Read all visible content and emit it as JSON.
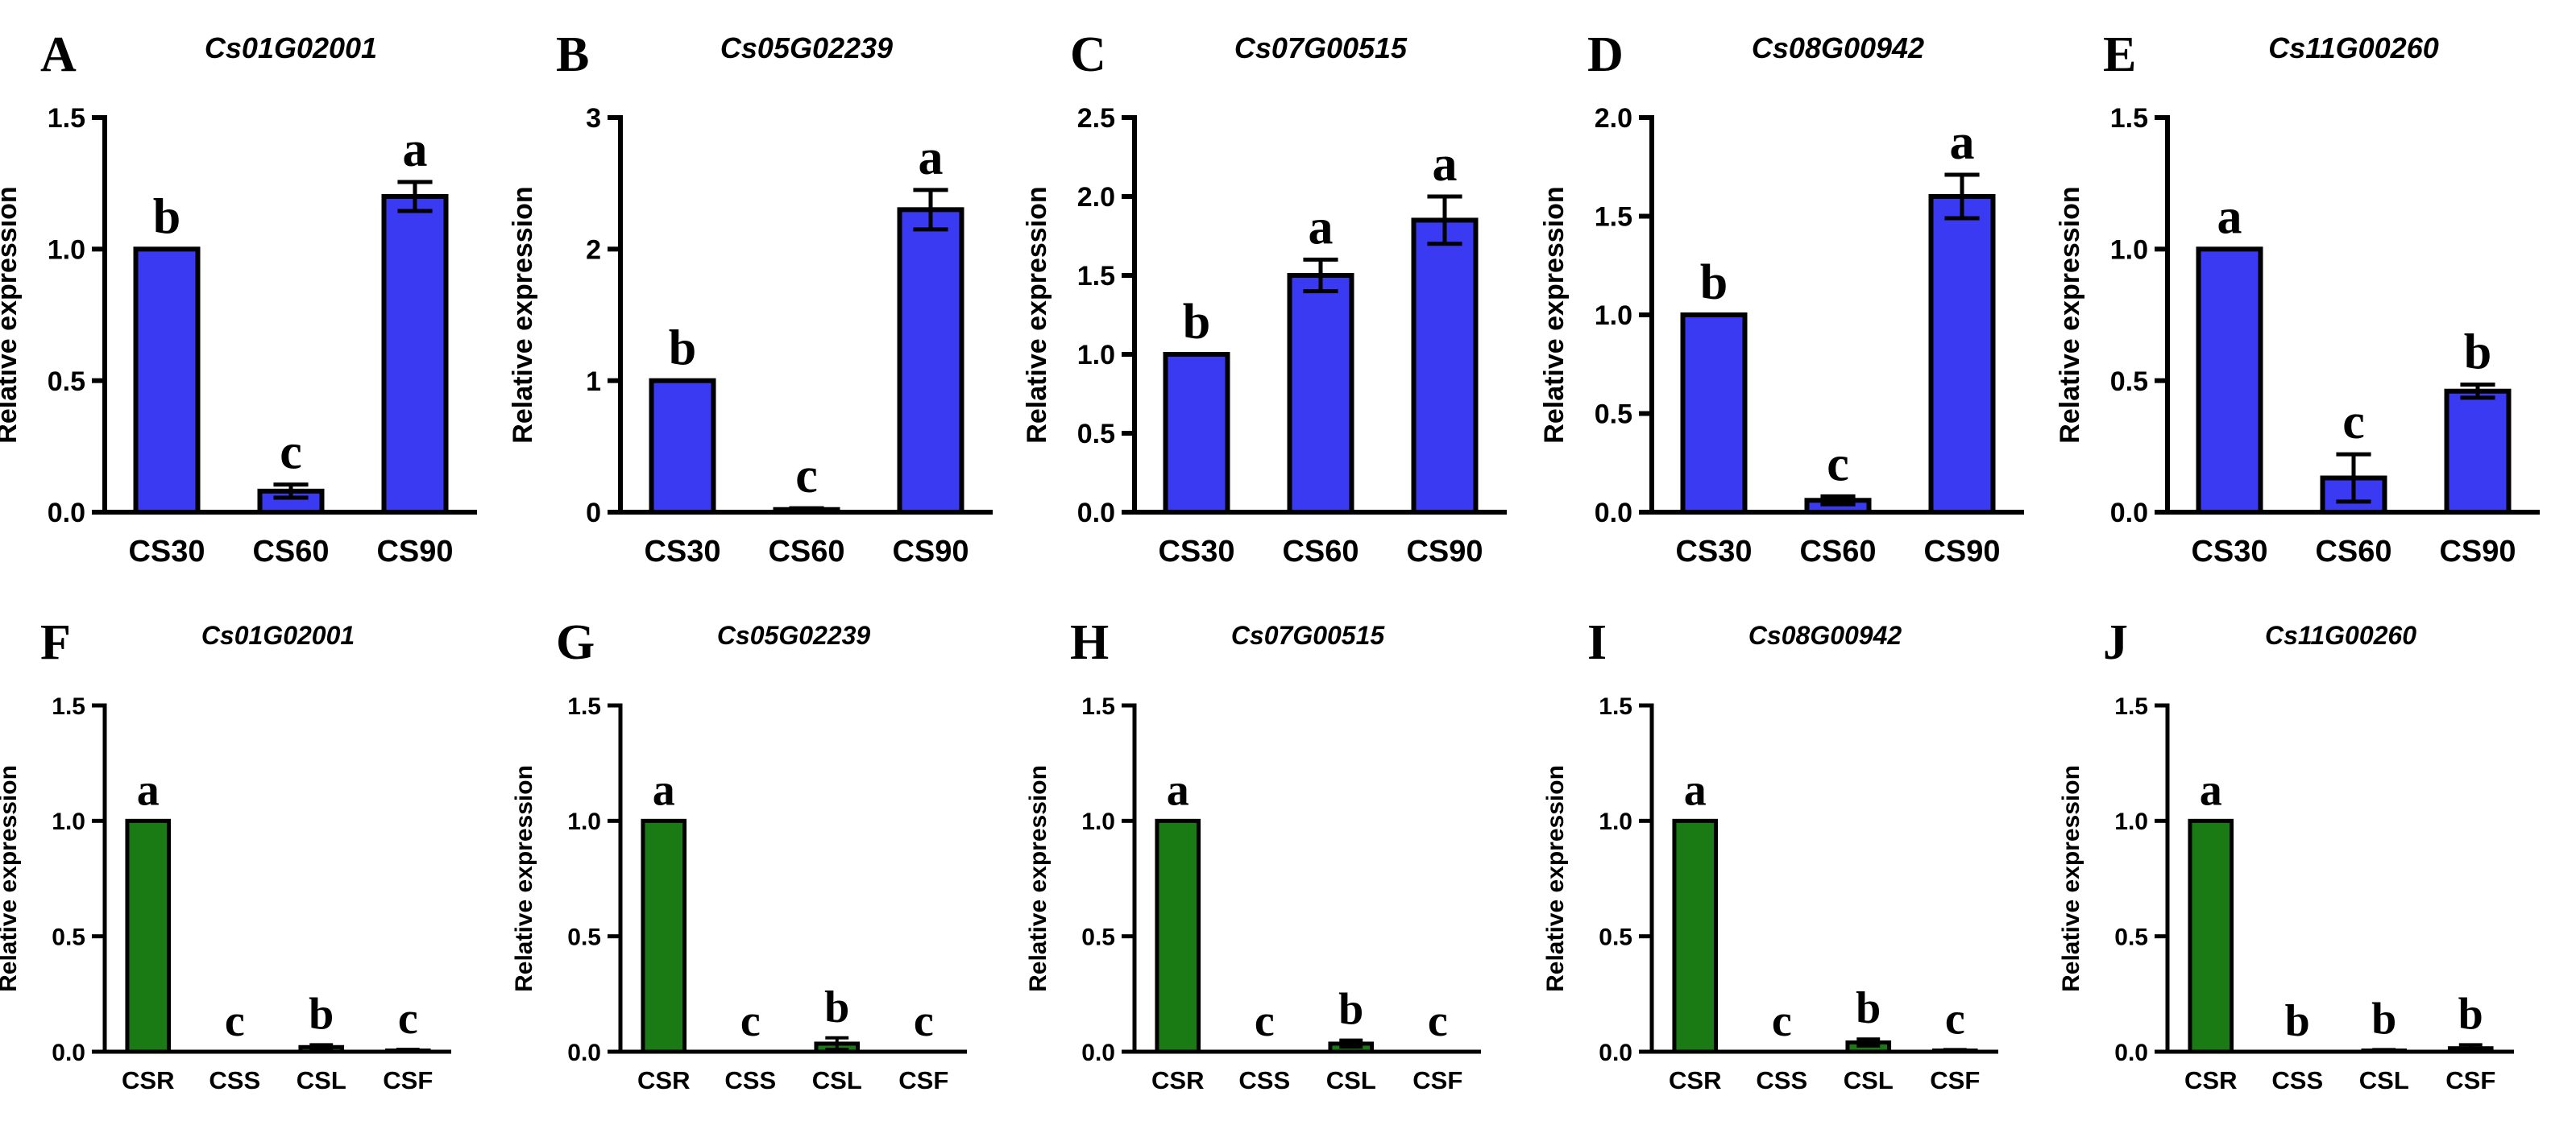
{
  "chart_data": [
    {
      "panel": "A",
      "type": "bar",
      "title": "Cs01G02001",
      "ylabel": "Relative expression",
      "xlabel": "",
      "categories": [
        "CS30",
        "CS60",
        "CS90"
      ],
      "values": [
        1.0,
        0.08,
        1.2
      ],
      "errors": [
        0.0,
        0.025,
        0.055
      ],
      "significance": [
        "b",
        "c",
        "a"
      ],
      "ylim": [
        0,
        1.5
      ],
      "yticks": [
        0.0,
        0.5,
        1.0,
        1.5
      ],
      "ytick_labels": [
        "0.0",
        "0.5",
        "1.0",
        "1.5"
      ],
      "color": "#3a3af2"
    },
    {
      "panel": "B",
      "type": "bar",
      "title": "Cs05G02239",
      "ylabel": "Relative expression",
      "xlabel": "",
      "categories": [
        "CS30",
        "CS60",
        "CS90"
      ],
      "values": [
        1.0,
        0.02,
        2.3
      ],
      "errors": [
        0.0,
        0.01,
        0.15
      ],
      "significance": [
        "b",
        "c",
        "a"
      ],
      "ylim": [
        0,
        3
      ],
      "yticks": [
        0,
        1,
        2,
        3
      ],
      "ytick_labels": [
        "0",
        "1",
        "2",
        "3"
      ],
      "color": "#3a3af2"
    },
    {
      "panel": "C",
      "type": "bar",
      "title": "Cs07G00515",
      "ylabel": "Relative expression",
      "xlabel": "",
      "categories": [
        "CS30",
        "CS60",
        "CS90"
      ],
      "values": [
        1.0,
        1.5,
        1.85
      ],
      "errors": [
        0.0,
        0.1,
        0.15
      ],
      "significance": [
        "b",
        "a",
        "a"
      ],
      "ylim": [
        0,
        2.5
      ],
      "yticks": [
        0.0,
        0.5,
        1.0,
        1.5,
        2.0,
        2.5
      ],
      "ytick_labels": [
        "0.0",
        "0.5",
        "1.0",
        "1.5",
        "2.0",
        "2.5"
      ],
      "color": "#3a3af2"
    },
    {
      "panel": "D",
      "type": "bar",
      "title": "Cs08G00942",
      "ylabel": "Relative expression",
      "xlabel": "",
      "categories": [
        "CS30",
        "CS60",
        "CS90"
      ],
      "values": [
        1.0,
        0.06,
        1.6
      ],
      "errors": [
        0.0,
        0.02,
        0.11
      ],
      "significance": [
        "b",
        "c",
        "a"
      ],
      "ylim": [
        0,
        2.0
      ],
      "yticks": [
        0.0,
        0.5,
        1.0,
        1.5,
        2.0
      ],
      "ytick_labels": [
        "0.0",
        "0.5",
        "1.0",
        "1.5",
        "2.0"
      ],
      "color": "#3a3af2"
    },
    {
      "panel": "E",
      "type": "bar",
      "title": "Cs11G00260",
      "ylabel": "Relative expression",
      "xlabel": "",
      "categories": [
        "CS30",
        "CS60",
        "CS90"
      ],
      "values": [
        1.0,
        0.13,
        0.46
      ],
      "errors": [
        0.0,
        0.09,
        0.025
      ],
      "significance": [
        "a",
        "c",
        "b"
      ],
      "ylim": [
        0,
        1.5
      ],
      "yticks": [
        0.0,
        0.5,
        1.0,
        1.5
      ],
      "ytick_labels": [
        "0.0",
        "0.5",
        "1.0",
        "1.5"
      ],
      "color": "#3a3af2"
    },
    {
      "panel": "F",
      "type": "bar",
      "title": "Cs01G02001",
      "ylabel": "Relative expression",
      "xlabel": "",
      "categories": [
        "CSR",
        "CSS",
        "CSL",
        "CSF"
      ],
      "values": [
        1.0,
        0.0,
        0.02,
        0.005
      ],
      "errors": [
        0.0,
        0.0,
        0.01,
        0.005
      ],
      "significance": [
        "a",
        "c",
        "b",
        "c"
      ],
      "ylim": [
        0,
        1.5
      ],
      "yticks": [
        0.0,
        0.5,
        1.0,
        1.5
      ],
      "ytick_labels": [
        "0.0",
        "0.5",
        "1.0",
        "1.5"
      ],
      "color": "#1a7a14"
    },
    {
      "panel": "G",
      "type": "bar",
      "title": "Cs05G02239",
      "ylabel": "Relative expression",
      "xlabel": "",
      "categories": [
        "CSR",
        "CSS",
        "CSL",
        "CSF"
      ],
      "values": [
        1.0,
        0.0,
        0.035,
        0.0
      ],
      "errors": [
        0.0,
        0.0,
        0.025,
        0.0
      ],
      "significance": [
        "a",
        "c",
        "b",
        "c"
      ],
      "ylim": [
        0,
        1.5
      ],
      "yticks": [
        0.0,
        0.5,
        1.0,
        1.5
      ],
      "ytick_labels": [
        "0.0",
        "0.5",
        "1.0",
        "1.5"
      ],
      "color": "#1a7a14"
    },
    {
      "panel": "H",
      "type": "bar",
      "title": "Cs07G00515",
      "ylabel": "Relative expression",
      "xlabel": "",
      "categories": [
        "CSR",
        "CSS",
        "CSL",
        "CSF"
      ],
      "values": [
        1.0,
        0.0,
        0.035,
        0.0
      ],
      "errors": [
        0.0,
        0.0,
        0.015,
        0.0
      ],
      "significance": [
        "a",
        "c",
        "b",
        "c"
      ],
      "ylim": [
        0,
        1.5
      ],
      "yticks": [
        0.0,
        0.5,
        1.0,
        1.5
      ],
      "ytick_labels": [
        "0.0",
        "0.5",
        "1.0",
        "1.5"
      ],
      "color": "#1a7a14"
    },
    {
      "panel": "I",
      "type": "bar",
      "title": "Cs08G00942",
      "ylabel": "Relative expression",
      "xlabel": "",
      "categories": [
        "CSR",
        "CSS",
        "CSL",
        "CSF"
      ],
      "values": [
        1.0,
        0.0,
        0.04,
        0.005
      ],
      "errors": [
        0.0,
        0.0,
        0.015,
        0.004
      ],
      "significance": [
        "a",
        "c",
        "b",
        "c"
      ],
      "ylim": [
        0,
        1.5
      ],
      "yticks": [
        0.0,
        0.5,
        1.0,
        1.5
      ],
      "ytick_labels": [
        "0.0",
        "0.5",
        "1.0",
        "1.5"
      ],
      "color": "#1a7a14"
    },
    {
      "panel": "J",
      "type": "bar",
      "title": "Cs11G00260",
      "ylabel": "Relative expression",
      "xlabel": "",
      "categories": [
        "CSR",
        "CSS",
        "CSL",
        "CSF"
      ],
      "values": [
        1.0,
        0.0,
        0.005,
        0.015
      ],
      "errors": [
        0.0,
        0.0,
        0.004,
        0.015
      ],
      "significance": [
        "a",
        "b",
        "b",
        "b"
      ],
      "ylim": [
        0,
        1.5
      ],
      "yticks": [
        0.0,
        0.5,
        1.0,
        1.5
      ],
      "ytick_labels": [
        "0.0",
        "0.5",
        "1.0",
        "1.5"
      ],
      "color": "#1a7a14"
    }
  ]
}
